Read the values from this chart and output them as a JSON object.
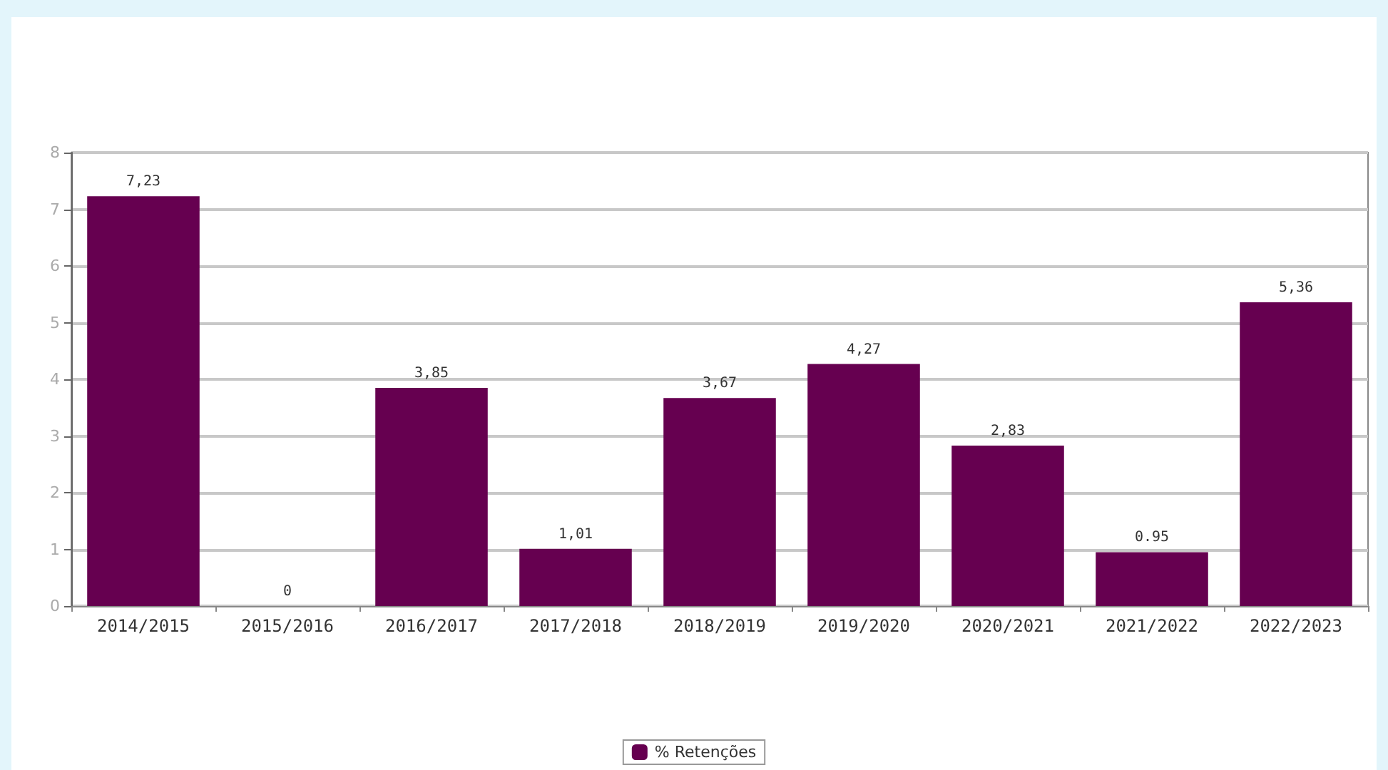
{
  "chart_data": {
    "type": "bar",
    "categories": [
      "2014/2015",
      "2015/2016",
      "2016/2017",
      "2017/2018",
      "2018/2019",
      "2019/2020",
      "2020/2021",
      "2021/2022",
      "2022/2023"
    ],
    "series": [
      {
        "name": "% Retenções",
        "color": "#660050",
        "values": [
          7.23,
          0,
          3.85,
          1.01,
          3.67,
          4.27,
          2.83,
          0.95,
          5.36
        ],
        "value_labels": [
          "7,23",
          "0",
          "3,85",
          "1,01",
          "3,67",
          "4,27",
          "2,83",
          "0.95",
          "5,36"
        ]
      }
    ],
    "ylim": [
      0,
      8
    ],
    "yticks": [
      0,
      1,
      2,
      3,
      4,
      5,
      6,
      7,
      8
    ],
    "grid": "y",
    "legend": "bottom"
  }
}
